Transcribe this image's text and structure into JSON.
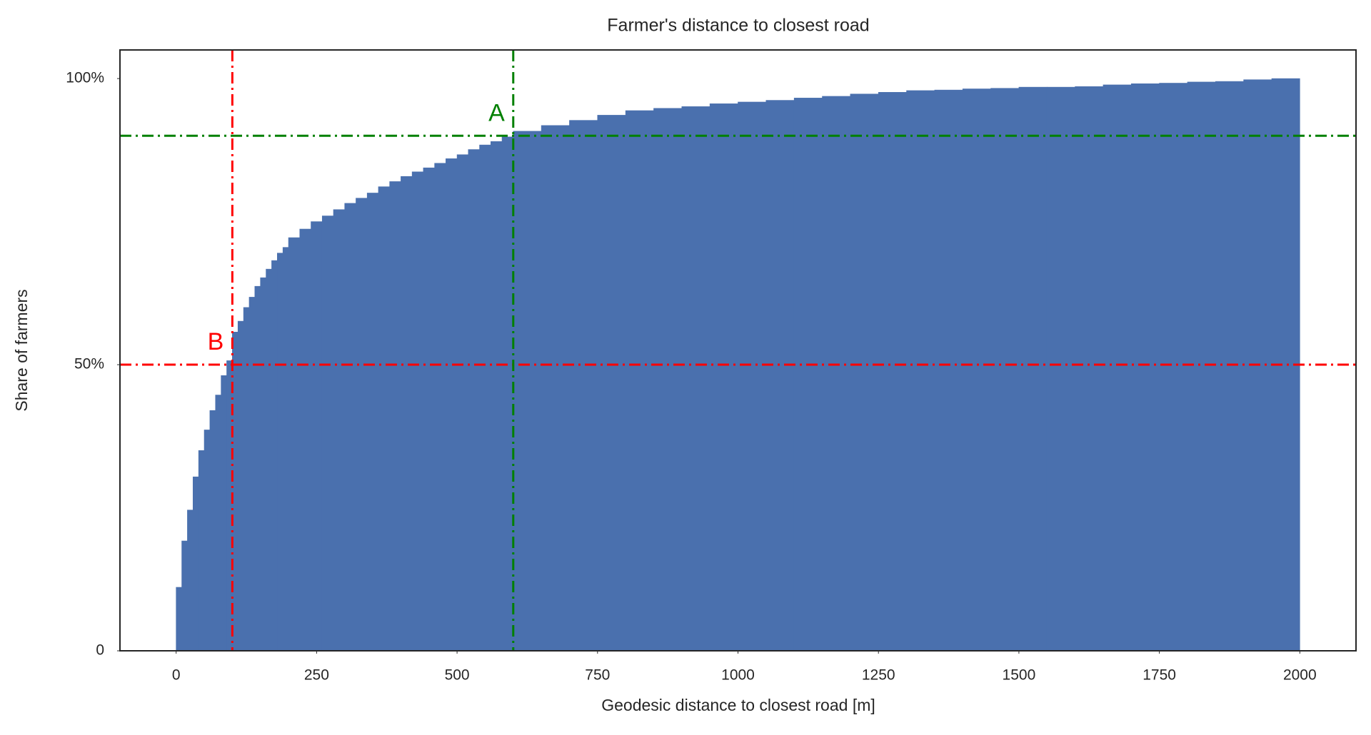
{
  "chart_data": {
    "type": "histogram",
    "cumulative": true,
    "title": "Farmer's distance to closest road",
    "xlabel": "Geodesic distance to closest road [m]",
    "ylabel": "Share of farmers",
    "color": "#4a70ae",
    "bins": [
      0,
      10,
      20,
      30,
      40,
      50,
      60,
      70,
      80,
      90,
      100,
      110,
      120,
      130,
      140,
      150,
      160,
      170,
      180,
      190,
      200,
      220,
      240,
      260,
      280,
      300,
      320,
      340,
      360,
      380,
      400,
      420,
      440,
      460,
      480,
      500,
      520,
      540,
      560,
      580,
      600,
      650,
      700,
      750,
      800,
      850,
      900,
      950,
      1000,
      1050,
      1100,
      1150,
      1200,
      1250,
      1300,
      1350,
      1400,
      1450,
      1500,
      1550,
      1600,
      1650,
      1700,
      1750,
      1800,
      1850,
      1900,
      1950,
      2000
    ],
    "values": [
      11.1,
      19.2,
      24.6,
      30.4,
      35,
      38.6,
      42,
      44.7,
      48.1,
      50.7,
      55.7,
      57.6,
      60,
      61.8,
      63.7,
      65.2,
      66.7,
      68.2,
      69.5,
      70.5,
      72.2,
      73.7,
      75,
      76,
      77.1,
      78.2,
      79.1,
      80,
      81.1,
      82,
      82.9,
      83.7,
      84.4,
      85.2,
      86,
      86.7,
      87.6,
      88.4,
      89,
      89.8,
      90.8,
      91.8,
      92.7,
      93.6,
      94.4,
      94.8,
      95.1,
      95.6,
      95.9,
      96.2,
      96.6,
      96.9,
      97.3,
      97.6,
      97.9,
      98,
      98.2,
      98.3,
      98.5,
      98.5,
      98.6,
      98.9,
      99.1,
      99.2,
      99.4,
      99.5,
      99.8,
      100
    ],
    "xlim": [
      -100,
      2100
    ],
    "ylim": [
      0,
      105
    ],
    "xticks": [
      0,
      250,
      500,
      750,
      1000,
      1250,
      1500,
      1750,
      2000
    ],
    "yticks": [
      0,
      {
        "value": 50,
        "label": "50%"
      },
      {
        "value": 100,
        "label": "100%"
      }
    ],
    "reference_lines": [
      {
        "x": 100,
        "y": 50,
        "color": "red",
        "label": "B"
      },
      {
        "x": 600,
        "y": 90,
        "color": "green",
        "label": "A"
      }
    ]
  }
}
